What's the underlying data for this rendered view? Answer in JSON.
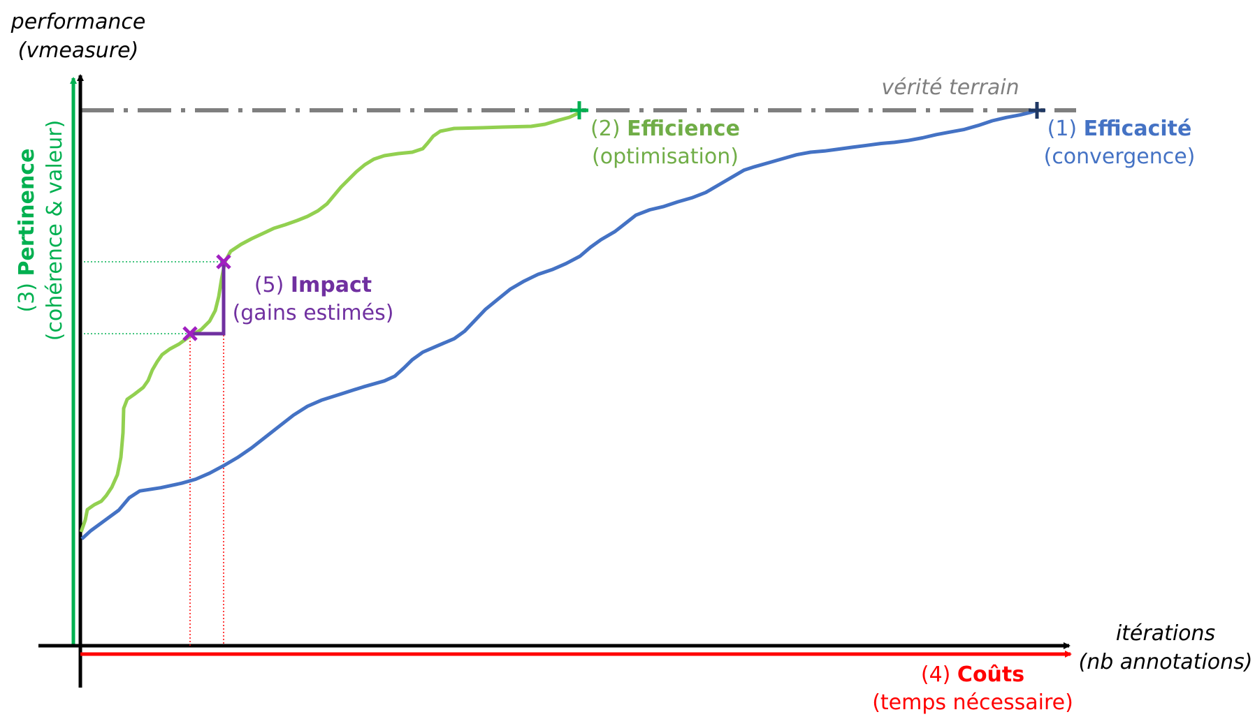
{
  "axes": {
    "y_title_line1": "performance",
    "y_title_line2": "(vmeasure)",
    "x_title_line1": "itérations",
    "x_title_line2": "(nb annotations)"
  },
  "ground_truth": {
    "label": "vérité terrain",
    "color": "#7f7f7f"
  },
  "criteria": {
    "efficacite": {
      "prefix": "(1) ",
      "name": "Efficacité",
      "sub": "(convergence)",
      "color": "#4472c4"
    },
    "efficience": {
      "prefix": "(2) ",
      "name": "Efficience",
      "sub": "(optimisation)",
      "color": "#70ad47"
    },
    "pertinence": {
      "prefix": "(3) ",
      "name": "Pertinence",
      "sub": "(cohérence & valeur)",
      "color": "#00b050"
    },
    "couts": {
      "prefix": "(4) ",
      "name": "Coûts",
      "sub": "(temps nécessaire)",
      "color": "#ff0000"
    },
    "impact": {
      "prefix": "(5) ",
      "name": "Impact",
      "sub": "(gains estimés)",
      "color": "#7030a0"
    }
  },
  "curves": {
    "blue_color": "#4472c4",
    "green_color": "#92d050",
    "end_marker_blue_color": "#1f3864",
    "end_marker_green_color": "#00b050",
    "impact_marker_color": "#a020c0"
  }
}
